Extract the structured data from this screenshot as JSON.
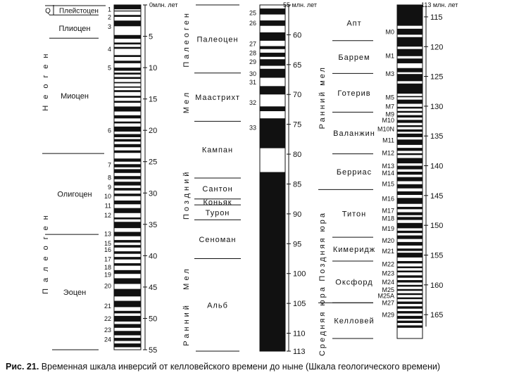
{
  "caption": {
    "label": "Рис. 21.",
    "text": "Временная шкала инверсий от келловейского времени до ныне (Шкала геологического времени)"
  },
  "units": {
    "ma1": "0млн. лет",
    "ma2": "55 млн. лет",
    "ma3": "113 млн. лет"
  },
  "col1": {
    "age_ticks": [
      0,
      5,
      10,
      15,
      20,
      25,
      30,
      35,
      40,
      45,
      50,
      55
    ],
    "epochs": [
      {
        "name": "Q",
        "start": 0,
        "end": 1.6
      },
      {
        "name": "Плейстоцен",
        "start": 0,
        "end": 1.6
      },
      {
        "name": "Плиоцен",
        "start": 1.6,
        "end": 5.3
      },
      {
        "name": "Миоцен",
        "start": 5.3,
        "end": 23.7
      },
      {
        "name": "Олигоцен",
        "start": 23.7,
        "end": 36.6
      },
      {
        "name": "Эоцен",
        "start": 36.6,
        "end": 55
      }
    ],
    "periods": [
      {
        "name": "Неоген",
        "start": 0,
        "end": 23.7
      },
      {
        "name": "Палеоген",
        "start": 23.7,
        "end": 55
      }
    ],
    "chrons": [
      {
        "label": "1",
        "age": 0.7
      },
      {
        "label": "2",
        "age": 1.9
      },
      {
        "label": "3",
        "age": 3.4
      },
      {
        "label": "4",
        "age": 7
      },
      {
        "label": "5",
        "age": 10
      },
      {
        "label": "6",
        "age": 20
      },
      {
        "label": "7",
        "age": 25.5
      },
      {
        "label": "8",
        "age": 27.5
      },
      {
        "label": "9",
        "age": 29
      },
      {
        "label": "10",
        "age": 30.5
      },
      {
        "label": "11",
        "age": 32
      },
      {
        "label": "12",
        "age": 33.5
      },
      {
        "label": "13",
        "age": 36.5
      },
      {
        "label": "15",
        "age": 38
      },
      {
        "label": "16",
        "age": 39
      },
      {
        "label": "17",
        "age": 40.5
      },
      {
        "label": "18",
        "age": 41.8
      },
      {
        "label": "19",
        "age": 43
      },
      {
        "label": "20",
        "age": 44.8
      },
      {
        "label": "21",
        "age": 48
      },
      {
        "label": "22",
        "age": 50
      },
      {
        "label": "23",
        "age": 51.8
      },
      {
        "label": "24",
        "age": 53.3
      }
    ],
    "normal": [
      [
        0,
        0.7
      ],
      [
        0.9,
        1.0
      ],
      [
        1.6,
        1.9
      ],
      [
        2.5,
        3.4
      ],
      [
        4.8,
        5.4
      ],
      [
        6,
        6.3
      ],
      [
        6.7,
        7
      ],
      [
        8,
        8.3
      ],
      [
        8.9,
        9.3
      ],
      [
        10,
        10.5
      ],
      [
        10.8,
        11.1
      ],
      [
        11.5,
        11.8
      ],
      [
        12.3,
        12.5
      ],
      [
        13,
        13.2
      ],
      [
        13.6,
        13.9
      ],
      [
        14.5,
        14.8
      ],
      [
        15.3,
        15.6
      ],
      [
        16.2,
        17
      ],
      [
        17.6,
        18.1
      ],
      [
        18.6,
        18.9
      ],
      [
        19.4,
        20.2
      ],
      [
        20.6,
        21.1
      ],
      [
        21.4,
        21.8
      ],
      [
        22.2,
        22.7
      ],
      [
        23.2,
        23.6
      ],
      [
        24.5,
        25
      ],
      [
        25.4,
        25.9
      ],
      [
        26.2,
        26.8
      ],
      [
        27.3,
        27.8
      ],
      [
        28.2,
        28.8
      ],
      [
        29.2,
        29.6
      ],
      [
        30.1,
        30.5
      ],
      [
        31.2,
        31.8
      ],
      [
        32.4,
        33.2
      ],
      [
        33.9,
        34.2
      ],
      [
        34.6,
        35.6
      ],
      [
        36.2,
        36.9
      ],
      [
        37.5,
        37.9
      ],
      [
        38.3,
        38.7
      ],
      [
        39.3,
        39.7
      ],
      [
        40.2,
        40.6
      ],
      [
        41.2,
        41.6
      ],
      [
        42.3,
        42.9
      ],
      [
        43.6,
        44.5
      ],
      [
        45.3,
        46.5
      ],
      [
        47.2,
        48.2
      ],
      [
        48.8,
        49.2
      ],
      [
        49.6,
        50.5
      ],
      [
        50.9,
        51.5
      ],
      [
        52,
        52.7
      ],
      [
        53.1,
        53.6
      ],
      [
        54,
        54.6
      ]
    ]
  },
  "col2": {
    "age_ticks": [
      55,
      60,
      65,
      70,
      75,
      80,
      85,
      90,
      95,
      100,
      105,
      110,
      113
    ],
    "stages": [
      {
        "name": "Палеоцен",
        "start": 55,
        "end": 66.4
      },
      {
        "name": "Маастрихт",
        "start": 66.4,
        "end": 74.5
      },
      {
        "name": "Кампан",
        "start": 74.5,
        "end": 84
      },
      {
        "name": "Сантон",
        "start": 84,
        "end": 87.5
      },
      {
        "name": "Коньяк",
        "start": 87.5,
        "end": 88.5
      },
      {
        "name": "Турон",
        "start": 88.5,
        "end": 91
      },
      {
        "name": "Сеноман",
        "start": 91,
        "end": 97.5
      },
      {
        "name": "Альб",
        "start": 97.5,
        "end": 113
      }
    ],
    "side_labels": [
      {
        "name": "Палеоген",
        "start": 55,
        "end": 66.4
      },
      {
        "name": "Мел",
        "start": 66.4,
        "end": 76
      },
      {
        "name": "Поздний",
        "start": 76,
        "end": 97.5
      },
      {
        "name": "Мел",
        "start": 97.5,
        "end": 104
      },
      {
        "name": "Ранний",
        "start": 104,
        "end": 113
      }
    ],
    "chrons": [
      {
        "label": "25",
        "age": 56.3
      },
      {
        "label": "26",
        "age": 58
      },
      {
        "label": "27",
        "age": 61.5
      },
      {
        "label": "28",
        "age": 63
      },
      {
        "label": "29",
        "age": 64.5
      },
      {
        "label": "30",
        "age": 66.5
      },
      {
        "label": "31",
        "age": 67.9
      },
      {
        "label": "32",
        "age": 71.3
      },
      {
        "label": "33",
        "age": 75.5
      }
    ],
    "normal": [
      [
        55.6,
        56.6
      ],
      [
        57.6,
        58.5
      ],
      [
        59.6,
        61
      ],
      [
        61.9,
        62.4
      ],
      [
        63,
        63.7
      ],
      [
        64.1,
        65.2
      ],
      [
        65.7,
        67.2
      ],
      [
        68.6,
        70
      ],
      [
        72,
        72.8
      ],
      [
        74,
        79
      ],
      [
        83,
        113
      ]
    ]
  },
  "col3": {
    "age_ticks": [
      115,
      120,
      125,
      130,
      135,
      140,
      145,
      150,
      155,
      160,
      165
    ],
    "stages": [
      {
        "name": "Апт",
        "start": 113,
        "end": 119
      },
      {
        "name": "Баррем",
        "start": 119,
        "end": 124.5
      },
      {
        "name": "Готерив",
        "start": 124.5,
        "end": 131
      },
      {
        "name": "Валанжин",
        "start": 131,
        "end": 138
      },
      {
        "name": "Берриас",
        "start": 138,
        "end": 144
      },
      {
        "name": "Титон",
        "start": 144,
        "end": 152
      },
      {
        "name": "Кимеридж",
        "start": 152,
        "end": 156
      },
      {
        "name": "Оксфорд",
        "start": 156,
        "end": 163
      },
      {
        "name": "Келловей",
        "start": 163,
        "end": 169
      }
    ],
    "side_labels": [
      {
        "name": "Ранний мел",
        "start": 113,
        "end": 144
      },
      {
        "name": "Поздняя юра",
        "start": 144,
        "end": 163
      },
      {
        "name": "Средняя юра",
        "start": 163,
        "end": 169
      }
    ],
    "chrons": [
      {
        "label": "M0",
        "age": 117.5
      },
      {
        "label": "M1",
        "age": 121.5
      },
      {
        "label": "M3",
        "age": 124.5
      },
      {
        "label": "M5",
        "age": 128.5
      },
      {
        "label": "M7",
        "age": 130
      },
      {
        "label": "M9",
        "age": 131.3
      },
      {
        "label": "M10",
        "age": 132.3
      },
      {
        "label": "M10N",
        "age": 133.8
      },
      {
        "label": "M11",
        "age": 135.7
      },
      {
        "label": "M12",
        "age": 137.8
      },
      {
        "label": "M13",
        "age": 140
      },
      {
        "label": "M14",
        "age": 141.2
      },
      {
        "label": "M15",
        "age": 143
      },
      {
        "label": "M16",
        "age": 145.5
      },
      {
        "label": "M17",
        "age": 147.5
      },
      {
        "label": "M18",
        "age": 148.8
      },
      {
        "label": "M19",
        "age": 150.5
      },
      {
        "label": "M20",
        "age": 152.5
      },
      {
        "label": "M21",
        "age": 154.3
      },
      {
        "label": "M22",
        "age": 156.5
      },
      {
        "label": "M23",
        "age": 158
      },
      {
        "label": "M24",
        "age": 159.5
      },
      {
        "label": "M25",
        "age": 160.8
      },
      {
        "label": "M25A",
        "age": 161.8
      },
      {
        "label": "M27",
        "age": 163
      },
      {
        "label": "M29",
        "age": 165
      }
    ],
    "normal": [
      [
        113,
        116.5
      ],
      [
        117,
        118
      ],
      [
        118.4,
        120
      ],
      [
        120.4,
        121.6
      ],
      [
        122,
        122.8
      ],
      [
        123.6,
        124.3
      ],
      [
        124.6,
        125.8
      ],
      [
        126.2,
        127.9
      ],
      [
        128.3,
        128.5
      ],
      [
        128.9,
        129.6
      ],
      [
        130.1,
        130.4
      ],
      [
        130.8,
        131.1
      ],
      [
        131.5,
        131.9
      ],
      [
        132.3,
        132.8
      ],
      [
        133.2,
        133.5
      ],
      [
        133.9,
        134.3
      ],
      [
        134.6,
        135.2
      ],
      [
        135.6,
        136.5
      ],
      [
        137,
        137.5
      ],
      [
        137.9,
        138.2
      ],
      [
        138.7,
        139.6
      ],
      [
        140,
        140.6
      ],
      [
        141,
        141.5
      ],
      [
        141.9,
        142.6
      ],
      [
        143.1,
        143.8
      ],
      [
        144.3,
        144.9
      ],
      [
        145.4,
        146.4
      ],
      [
        146.9,
        147.3
      ],
      [
        147.8,
        148.3
      ],
      [
        148.6,
        149.1
      ],
      [
        149.6,
        150.5
      ],
      [
        150.9,
        151.3
      ],
      [
        151.7,
        152.3
      ],
      [
        152.8,
        153.4
      ],
      [
        153.9,
        154.3
      ],
      [
        154.6,
        155.4
      ],
      [
        156,
        156.4
      ],
      [
        156.9,
        157.2
      ],
      [
        157.6,
        157.9
      ],
      [
        158.4,
        158.8
      ],
      [
        159.2,
        159.6
      ],
      [
        160,
        160.3
      ],
      [
        160.7,
        161
      ],
      [
        161.4,
        161.7
      ],
      [
        162.1,
        162.4
      ],
      [
        162.8,
        163.2
      ],
      [
        163.6,
        164
      ],
      [
        164.4,
        164.8
      ],
      [
        165.2,
        165.7
      ],
      [
        166,
        166.4
      ],
      [
        166.8,
        167.2
      ]
    ]
  }
}
